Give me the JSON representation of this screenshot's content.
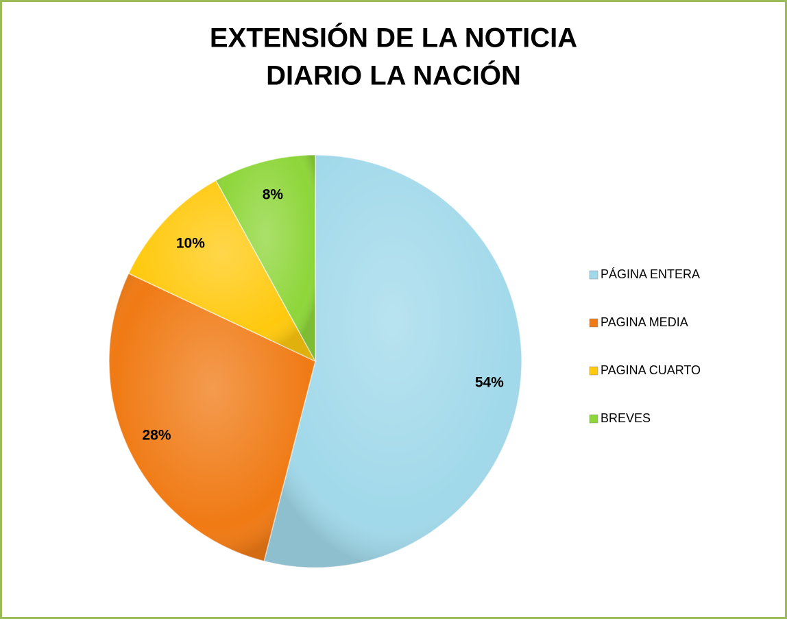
{
  "chart_data": {
    "type": "pie",
    "title": [
      "EXTENSIÓN DE LA NOTICIA",
      "DIARIO LA NACIÓN"
    ],
    "categories": [
      "PÁGINA ENTERA",
      "PAGINA MEDIA",
      "PAGINA CUARTO",
      "BREVES"
    ],
    "values": [
      54,
      28,
      10,
      8
    ],
    "value_labels": [
      "54%",
      "28%",
      "10%",
      "8%"
    ],
    "colors": [
      "#a1d9ea",
      "#f07a14",
      "#ffc90e",
      "#8ed63a"
    ],
    "legend": "right"
  }
}
